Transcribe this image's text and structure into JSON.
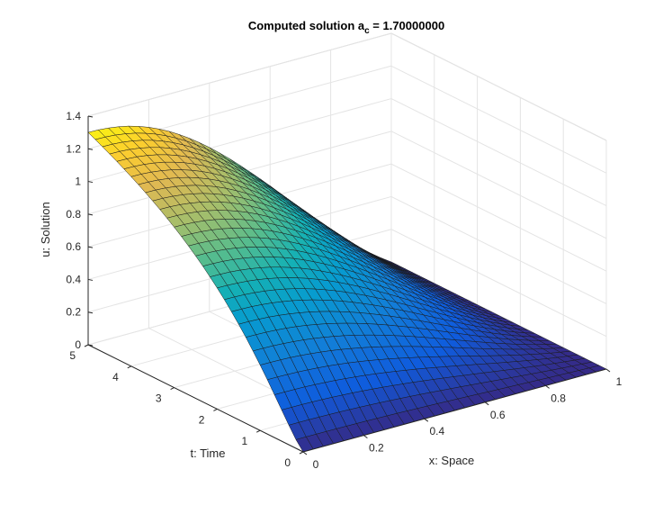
{
  "chart_data": {
    "type": "surface",
    "title_main": "Computed solution a",
    "title_sub": "c",
    "title_rest": " = 1.70000000",
    "xlabel": "x: Space",
    "ylabel": "t: Time",
    "zlabel": "u: Solution",
    "xlim": [
      0,
      1
    ],
    "ylim": [
      0,
      5
    ],
    "zlim": [
      0,
      1.4
    ],
    "xticks": [
      "0",
      "0.2",
      "0.4",
      "0.6",
      "0.8",
      "1"
    ],
    "yticks": [
      "0",
      "1",
      "2",
      "3",
      "4",
      "5"
    ],
    "zticks": [
      "0",
      "0.2",
      "0.4",
      "0.6",
      "0.8",
      "1",
      "1.2",
      "1.4"
    ],
    "grid": true,
    "colormap": "parula",
    "mesh": {
      "nx": 31,
      "nt": 31
    },
    "surface_samples": {
      "x": [
        0,
        0.2,
        0.4,
        0.6,
        0.8,
        1
      ],
      "t": [
        0,
        1,
        2,
        3,
        4,
        5
      ],
      "u_at_t5": [
        1.3,
        1.28,
        1.0,
        0.62,
        0.25,
        0.0
      ],
      "u_at_t0": [
        0.0,
        0.0,
        0.0,
        0.0,
        0.0,
        0.0
      ],
      "u_at_x0": [
        0.0,
        0.4,
        0.78,
        1.05,
        1.24,
        1.3
      ]
    }
  }
}
